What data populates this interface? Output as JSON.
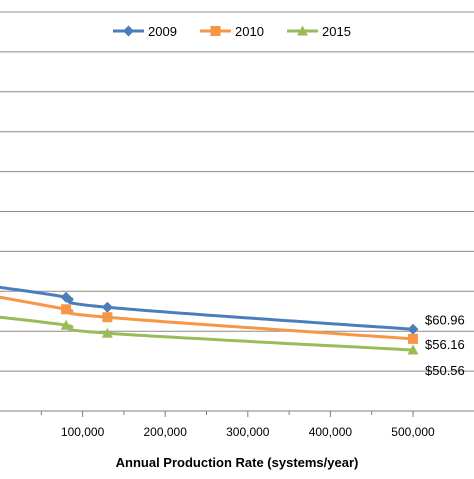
{
  "chart_data": {
    "type": "line",
    "title": "",
    "xlabel": "Annual Production Rate (systems/year)",
    "ylabel": "",
    "xlim": [
      0,
      520000
    ],
    "ylim": [
      20,
      230
    ],
    "x_ticks": [
      100000,
      200000,
      300000,
      400000,
      500000
    ],
    "x_tick_labels": [
      "100,000",
      "200,000",
      "300,000",
      "400,000",
      "500,000"
    ],
    "y_gridlines": [
      40,
      60,
      80,
      100,
      120,
      140,
      160,
      180,
      200,
      220
    ],
    "grid": true,
    "legend_position": "top",
    "series": [
      {
        "name": "2009",
        "color": "#4a7ebb",
        "marker": "diamond",
        "x": [
          0,
          80000,
          130000,
          500000
        ],
        "y": [
          82,
          77,
          72,
          60.96
        ],
        "marked_x": [
          80000,
          130000,
          500000
        ],
        "end_label": "$60.96"
      },
      {
        "name": "2010",
        "color": "#f79646",
        "marker": "square",
        "x": [
          0,
          80000,
          130000,
          500000
        ],
        "y": [
          77,
          71,
          67,
          56.16
        ],
        "marked_x": [
          80000,
          130000,
          500000
        ],
        "end_label": "$56.16"
      },
      {
        "name": "2015",
        "color": "#9bbb59",
        "marker": "triangle",
        "x": [
          0,
          80000,
          130000,
          500000
        ],
        "y": [
          67,
          63,
          59,
          50.56
        ],
        "marked_x": [
          80000,
          130000,
          500000
        ],
        "end_label": "$50.56"
      }
    ]
  }
}
